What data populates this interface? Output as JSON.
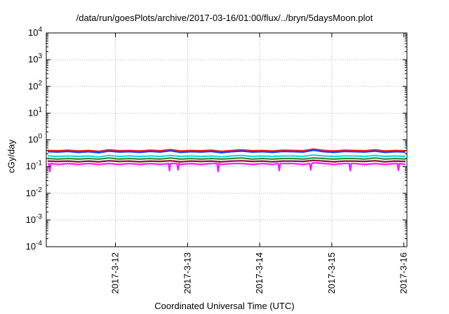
{
  "chart_data": {
    "type": "line",
    "title": "/data/run/goesPlots/archive/2017-03-16/01:00/flux/../bryn/5daysMoon.plot",
    "xlabel": "Coordinated Universal Time (UTC)",
    "ylabel": "cGy/day",
    "y_scale": "log",
    "ylim": [
      0.0001,
      10000
    ],
    "y_ticks": [
      {
        "value": 0.0001,
        "base": "10",
        "exp": "-4"
      },
      {
        "value": 0.001,
        "base": "10",
        "exp": "-3"
      },
      {
        "value": 0.01,
        "base": "10",
        "exp": "-2"
      },
      {
        "value": 0.1,
        "base": "10",
        "exp": "-1"
      },
      {
        "value": 1,
        "base": "10",
        "exp": "0"
      },
      {
        "value": 10,
        "base": "10",
        "exp": "1"
      },
      {
        "value": 100,
        "base": "10",
        "exp": "2"
      },
      {
        "value": 1000,
        "base": "10",
        "exp": "3"
      },
      {
        "value": 10000,
        "base": "10",
        "exp": "4"
      }
    ],
    "xlim": [
      "2017-03-11 01:00",
      "2017-03-16 01:00"
    ],
    "x_ticks": [
      "2017-3-12",
      "2017-3-13",
      "2017-3-14",
      "2017-3-15",
      "2017-3-16"
    ],
    "grid": true,
    "series": [
      {
        "color": "#ff1a1a",
        "values": [
          0.4,
          0.39,
          0.41,
          0.38,
          0.4,
          0.37,
          0.42,
          0.39,
          0.4,
          0.38,
          0.41,
          0.39,
          0.43,
          0.38,
          0.4,
          0.39,
          0.41,
          0.37,
          0.4,
          0.42,
          0.39,
          0.4,
          0.38,
          0.41,
          0.4,
          0.39,
          0.45,
          0.4,
          0.38,
          0.41,
          0.4,
          0.39,
          0.42,
          0.38,
          0.4,
          0.39
        ]
      },
      {
        "color": "#1a3cff",
        "values": [
          0.36,
          0.35,
          0.37,
          0.34,
          0.36,
          0.33,
          0.38,
          0.35,
          0.36,
          0.34,
          0.37,
          0.35,
          0.39,
          0.34,
          0.36,
          0.35,
          0.37,
          0.33,
          0.36,
          0.38,
          0.35,
          0.36,
          0.34,
          0.37,
          0.36,
          0.35,
          0.41,
          0.36,
          0.34,
          0.37,
          0.36,
          0.35,
          0.38,
          0.34,
          0.36,
          0.35
        ]
      },
      {
        "color": "#18d9d9",
        "values": [
          0.25,
          0.24,
          0.25,
          0.24,
          0.25,
          0.23,
          0.26,
          0.24,
          0.25,
          0.24,
          0.25,
          0.24,
          0.26,
          0.24,
          0.25,
          0.24,
          0.25,
          0.23,
          0.25,
          0.26,
          0.24,
          0.25,
          0.24,
          0.25,
          0.25,
          0.24,
          0.27,
          0.25,
          0.24,
          0.25,
          0.25,
          0.24,
          0.26,
          0.24,
          0.25,
          0.24
        ]
      },
      {
        "color": "#2e8b3a",
        "values": [
          0.2,
          0.19,
          0.2,
          0.19,
          0.2,
          0.19,
          0.21,
          0.19,
          0.2,
          0.19,
          0.2,
          0.19,
          0.21,
          0.19,
          0.2,
          0.19,
          0.2,
          0.19,
          0.2,
          0.21,
          0.19,
          0.2,
          0.19,
          0.2,
          0.2,
          0.19,
          0.21,
          0.2,
          0.19,
          0.2,
          0.2,
          0.19,
          0.21,
          0.19,
          0.2,
          0.19
        ]
      },
      {
        "color": "#8b0a2a",
        "values": [
          0.16,
          0.155,
          0.16,
          0.15,
          0.16,
          0.15,
          0.165,
          0.155,
          0.16,
          0.15,
          0.16,
          0.155,
          0.165,
          0.15,
          0.16,
          0.155,
          0.16,
          0.15,
          0.16,
          0.165,
          0.155,
          0.16,
          0.15,
          0.16,
          0.16,
          0.155,
          0.17,
          0.16,
          0.15,
          0.16,
          0.16,
          0.155,
          0.165,
          0.15,
          0.16,
          0.155
        ]
      },
      {
        "color": "#ff1aff",
        "values": [
          0.13,
          0.12,
          0.13,
          0.12,
          0.13,
          0.12,
          0.13,
          0.12,
          0.13,
          0.12,
          0.13,
          0.12,
          0.13,
          0.12,
          0.13,
          0.12,
          0.13,
          0.12,
          0.13,
          0.13,
          0.12,
          0.13,
          0.12,
          0.13,
          0.13,
          0.12,
          0.14,
          0.13,
          0.12,
          0.13,
          0.13,
          0.12,
          0.13,
          0.12,
          0.13,
          0.12
        ]
      }
    ],
    "dips": [
      {
        "series": 5,
        "x": "2017-03-11 02:10",
        "value": 0.065
      },
      {
        "series": 5,
        "x": "2017-03-12 18:00",
        "value": 0.07
      },
      {
        "series": 5,
        "x": "2017-03-12 20:50",
        "value": 0.075
      },
      {
        "series": 5,
        "x": "2017-03-13 10:10",
        "value": 0.065
      },
      {
        "series": 5,
        "x": "2017-03-14 06:30",
        "value": 0.07
      },
      {
        "series": 5,
        "x": "2017-03-14 17:00",
        "value": 0.075
      },
      {
        "series": 5,
        "x": "2017-03-15 06:10",
        "value": 0.07
      },
      {
        "series": 5,
        "x": "2017-03-15 22:10",
        "value": 0.072
      }
    ]
  }
}
